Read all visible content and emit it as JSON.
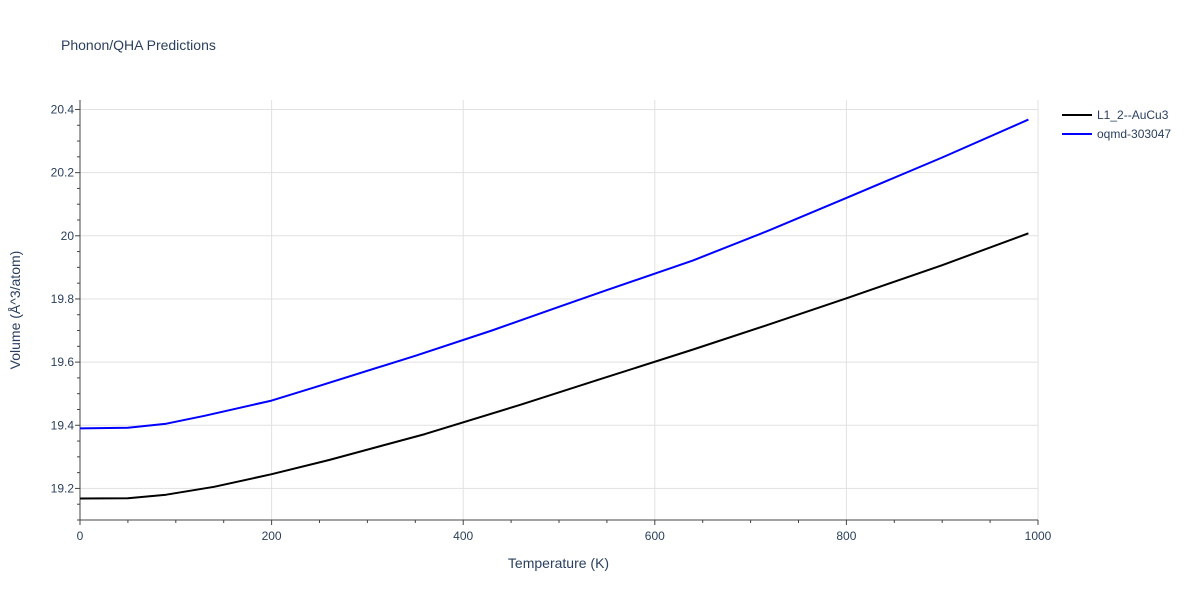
{
  "chart_data": {
    "type": "line",
    "title": "Phonon/QHA Predictions",
    "xlabel": "Temperature (K)",
    "ylabel": "Volume (Å^3/atom)",
    "xlim": [
      0,
      1000
    ],
    "ylim": [
      19.1,
      20.43
    ],
    "xticks": [
      0,
      200,
      400,
      600,
      800,
      1000
    ],
    "yticks": [
      19.2,
      19.4,
      19.6,
      19.8,
      20,
      20.2,
      20.4
    ],
    "xtick_labels": [
      "0",
      "200",
      "400",
      "600",
      "800",
      "1000"
    ],
    "ytick_labels": [
      "19.2",
      "19.4",
      "19.6",
      "19.8",
      "20",
      "20.2",
      "20.4"
    ],
    "grid": true,
    "legend_position": "top-right",
    "series": [
      {
        "name": "L1_2--AuCu3",
        "color": "#000000",
        "x": [
          0,
          50,
          90,
          140,
          200,
          260,
          360,
          460,
          540,
          640,
          720,
          800,
          900,
          990
        ],
        "y": [
          19.168,
          19.169,
          19.18,
          19.205,
          19.245,
          19.29,
          19.372,
          19.465,
          19.543,
          19.64,
          19.72,
          19.802,
          19.907,
          20.008
        ]
      },
      {
        "name": "oqmd-303047",
        "color": "#0000ff",
        "x": [
          0,
          50,
          90,
          130,
          200,
          250,
          350,
          430,
          500,
          550,
          640,
          720,
          800,
          900,
          990
        ],
        "y": [
          19.39,
          19.392,
          19.405,
          19.43,
          19.478,
          19.525,
          19.62,
          19.7,
          19.775,
          19.828,
          19.922,
          20.018,
          20.12,
          20.248,
          20.368
        ]
      }
    ]
  }
}
